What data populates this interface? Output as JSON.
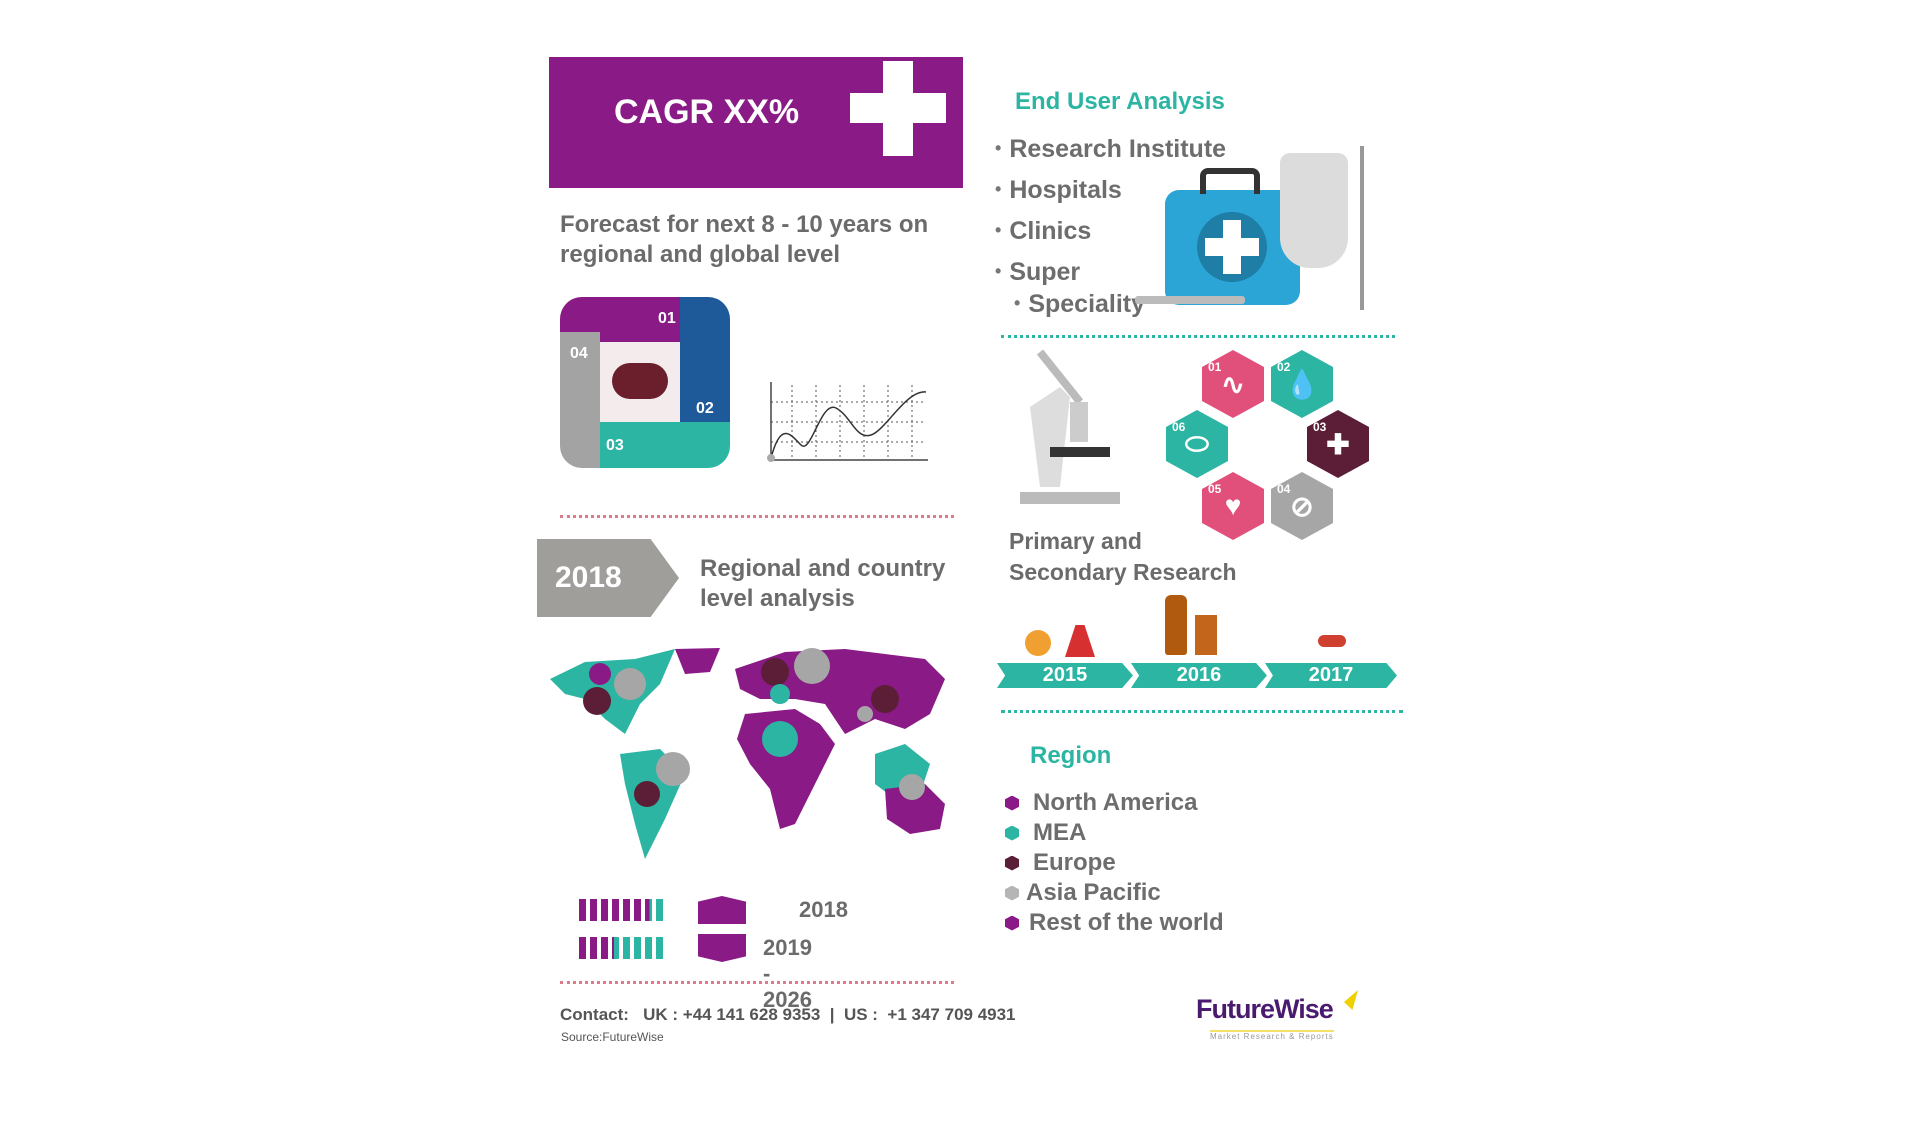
{
  "cagr": {
    "label": "CAGR XX%"
  },
  "forecast": {
    "line1": "Forecast for next 8 - 10  years on",
    "line2": "regional and global level"
  },
  "cycle": {
    "steps": [
      "01",
      "02",
      "03",
      "04"
    ]
  },
  "regional": {
    "year": "2018",
    "line1": "Regional and country",
    "line2": "level analysis"
  },
  "population": {
    "rows": [
      {
        "label": "2018",
        "purple_share": 0.8
      },
      {
        "label": "2019 - 2026",
        "purple_share": 0.4
      }
    ]
  },
  "contact": {
    "text": "Contact:   UK : +44 141 628 9353  |  US :  +1 347 709 4931",
    "source": "Source:FutureWise"
  },
  "end_user": {
    "title": "End User Analysis",
    "items": [
      "Research Institute",
      "Hospitals",
      "Clinics",
      "Super",
      "Speciality"
    ]
  },
  "research": {
    "line1": "Primary and",
    "line2": "Secondary Research",
    "hexagons": [
      {
        "n": "01",
        "icon": "stethoscope-icon",
        "color": "#e0507a"
      },
      {
        "n": "02",
        "icon": "drops-icon",
        "color": "#2bb5a2"
      },
      {
        "n": "03",
        "icon": "cross-icon",
        "color": "#5b1e36"
      },
      {
        "n": "04",
        "icon": "no-icon",
        "color": "#a6a6a6"
      },
      {
        "n": "05",
        "icon": "heart-icon",
        "color": "#e0507a"
      },
      {
        "n": "06",
        "icon": "pill-icon",
        "color": "#2bb5a2"
      }
    ]
  },
  "timeline": {
    "years": [
      "2015",
      "2016",
      "2017"
    ]
  },
  "region": {
    "title": "Region",
    "items": [
      {
        "label": "North America",
        "color": "#8a1a86"
      },
      {
        "label": "MEA",
        "color": "#2bb5a2"
      },
      {
        "label": "Europe",
        "color": "#5b1e36"
      },
      {
        "label": "Asia Pacific",
        "color": "#b5b5b5"
      },
      {
        "label": "Rest of the world",
        "color": "#8a1a86"
      }
    ]
  },
  "logo": {
    "name": "FutureWise",
    "tagline": "Market Research & Reports"
  },
  "colors": {
    "purple": "#8a1a86",
    "teal": "#2bb5a2",
    "maroon": "#5b1e36",
    "gray": "#a6a6a6",
    "blue": "#1e5a9a"
  }
}
